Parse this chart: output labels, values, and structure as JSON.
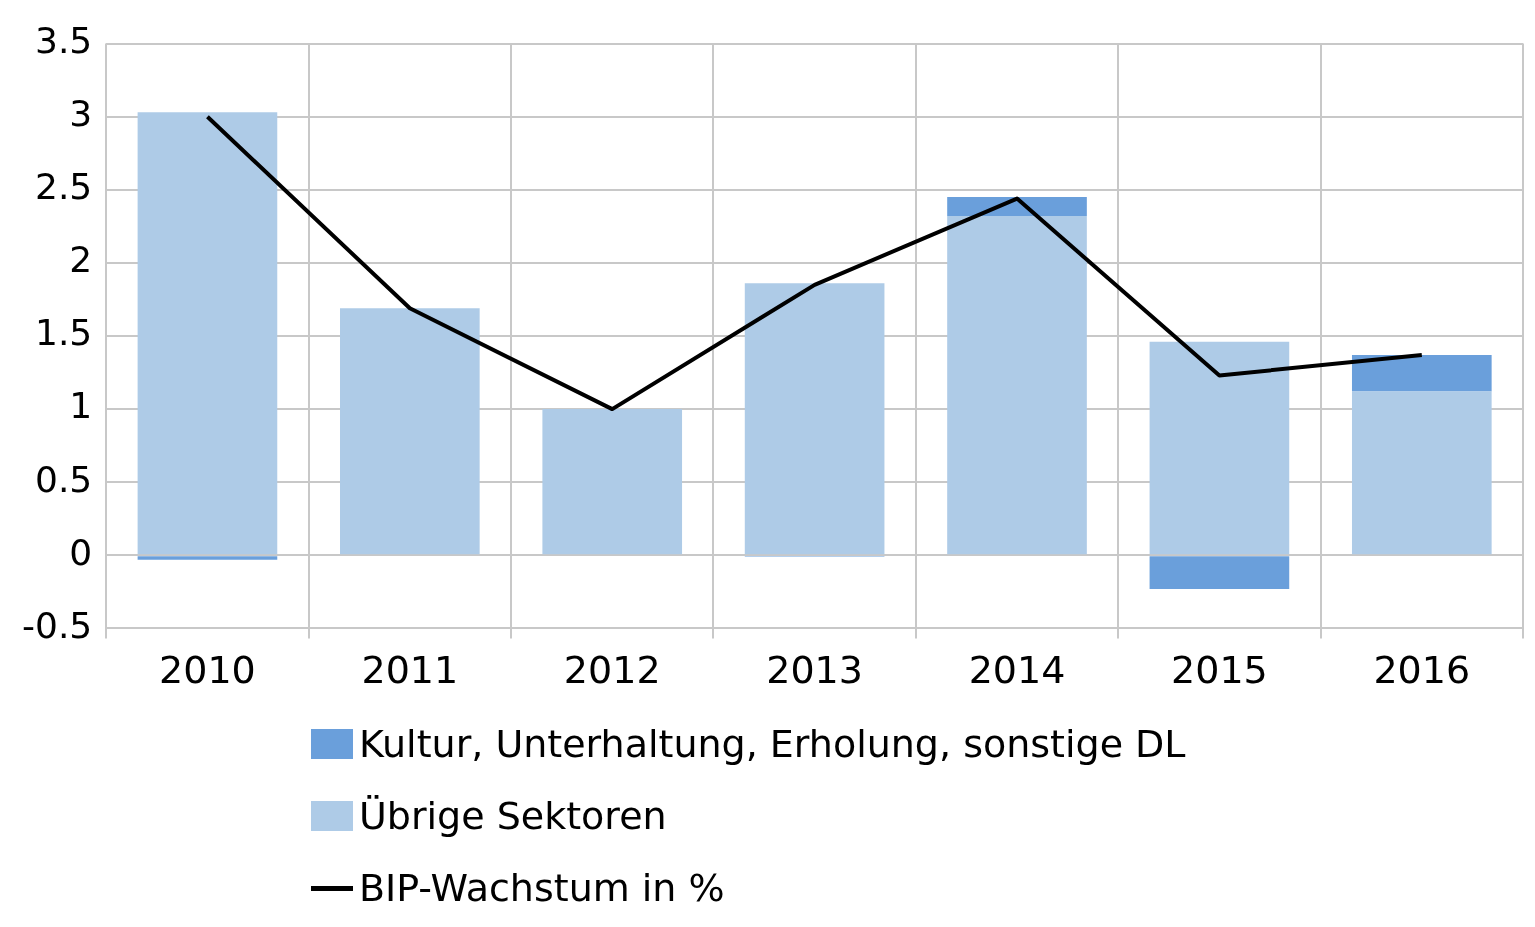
{
  "chart_data": {
    "type": "bar",
    "stacked": true,
    "categories": [
      "2010",
      "2011",
      "2012",
      "2013",
      "2014",
      "2015",
      "2016"
    ],
    "series": [
      {
        "name": "Übrige Sektoren",
        "color": "#aecbe7",
        "values": [
          3.03,
          1.69,
          1.0,
          1.86,
          2.32,
          1.46,
          1.12
        ]
      },
      {
        "name": "Kultur, Unterhaltung, Erholung, sonstige DL",
        "color": "#6a9fdb",
        "values": [
          -0.03,
          0,
          0,
          -0.01,
          0.13,
          -0.23,
          0.25
        ]
      },
      {
        "name": "BIP-Wachstum in %",
        "type": "line",
        "color": "#000000",
        "values": [
          3.0,
          1.69,
          1.0,
          1.85,
          2.44,
          1.23,
          1.37
        ]
      }
    ],
    "ylim": [
      -0.5,
      3.5
    ],
    "yticks": [
      -0.5,
      0,
      0.5,
      1,
      1.5,
      2,
      2.5,
      3,
      3.5
    ],
    "grid": true,
    "legend": "bottom",
    "marker": "none"
  }
}
